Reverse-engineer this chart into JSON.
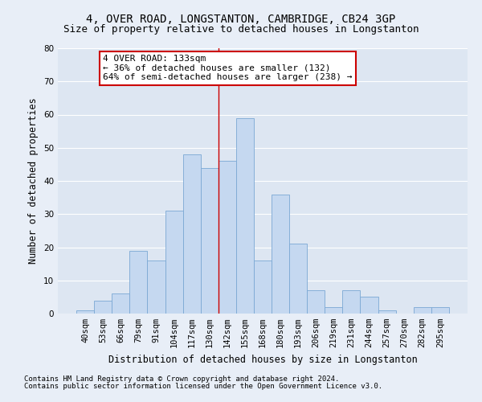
{
  "title": "4, OVER ROAD, LONGSTANTON, CAMBRIDGE, CB24 3GP",
  "subtitle": "Size of property relative to detached houses in Longstanton",
  "xlabel": "Distribution of detached houses by size in Longstanton",
  "ylabel": "Number of detached properties",
  "footer_line1": "Contains HM Land Registry data © Crown copyright and database right 2024.",
  "footer_line2": "Contains public sector information licensed under the Open Government Licence v3.0.",
  "categories": [
    "40sqm",
    "53sqm",
    "66sqm",
    "79sqm",
    "91sqm",
    "104sqm",
    "117sqm",
    "130sqm",
    "142sqm",
    "155sqm",
    "168sqm",
    "180sqm",
    "193sqm",
    "206sqm",
    "219sqm",
    "231sqm",
    "244sqm",
    "257sqm",
    "270sqm",
    "282sqm",
    "295sqm"
  ],
  "values": [
    1,
    4,
    6,
    19,
    16,
    31,
    48,
    44,
    46,
    59,
    16,
    36,
    21,
    7,
    2,
    7,
    5,
    1,
    0,
    2,
    2
  ],
  "bar_color": "#c5d8f0",
  "bar_edge_color": "#7ba8d4",
  "annotation_box_text": "4 OVER ROAD: 133sqm\n← 36% of detached houses are smaller (132)\n64% of semi-detached houses are larger (238) →",
  "annotation_box_color": "#ffffff",
  "annotation_box_edge_color": "#cc0000",
  "vline_x_index": 7,
  "vline_color": "#cc0000",
  "background_color": "#dde6f2",
  "fig_background_color": "#e8eef7",
  "ylim": [
    0,
    80
  ],
  "yticks": [
    0,
    10,
    20,
    30,
    40,
    50,
    60,
    70,
    80
  ],
  "grid_color": "#ffffff",
  "title_fontsize": 10,
  "subtitle_fontsize": 9,
  "axis_label_fontsize": 8.5,
  "tick_fontsize": 7.5,
  "annotation_fontsize": 8,
  "footer_fontsize": 6.5
}
